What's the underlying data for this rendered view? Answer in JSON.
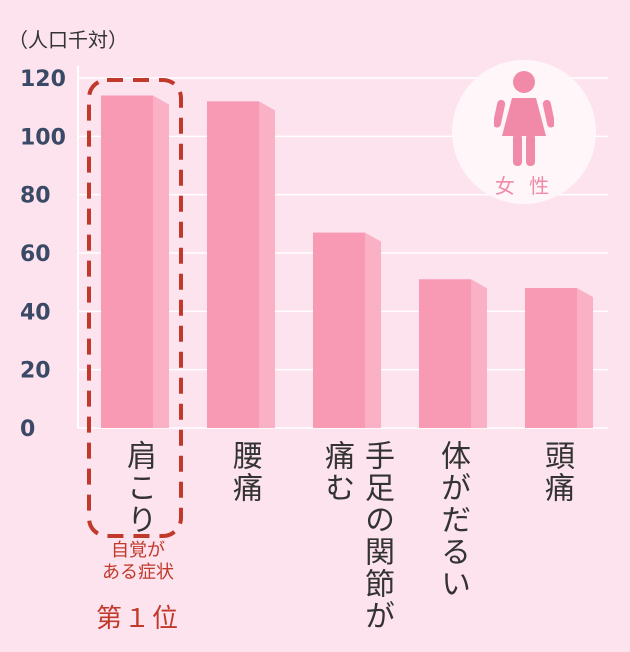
{
  "unit_label": "（人口千対）",
  "badge": {
    "label": "女 性",
    "icon": "female-person-icon"
  },
  "highlight": {
    "note_line1": "自覚が",
    "note_line2": "ある症状",
    "rank": "第１位"
  },
  "colors": {
    "background": "#fde3ee",
    "bar_front": "#f99ab4",
    "bar_side": "#fbb1c5",
    "bar_top": "#f585a4",
    "grid": "#ffffff",
    "axis_text": "#3a4a66",
    "highlight": "#c0392b"
  },
  "chart_data": {
    "type": "bar",
    "categories": [
      "肩こり",
      "腰痛",
      "手足の\n関節が痛む",
      "体がだるい",
      "頭痛"
    ],
    "values": [
      114,
      112,
      67,
      51,
      48
    ],
    "ylim": [
      0,
      120
    ],
    "yticks": [
      0,
      20,
      40,
      60,
      80,
      100,
      120
    ],
    "grid": true
  }
}
